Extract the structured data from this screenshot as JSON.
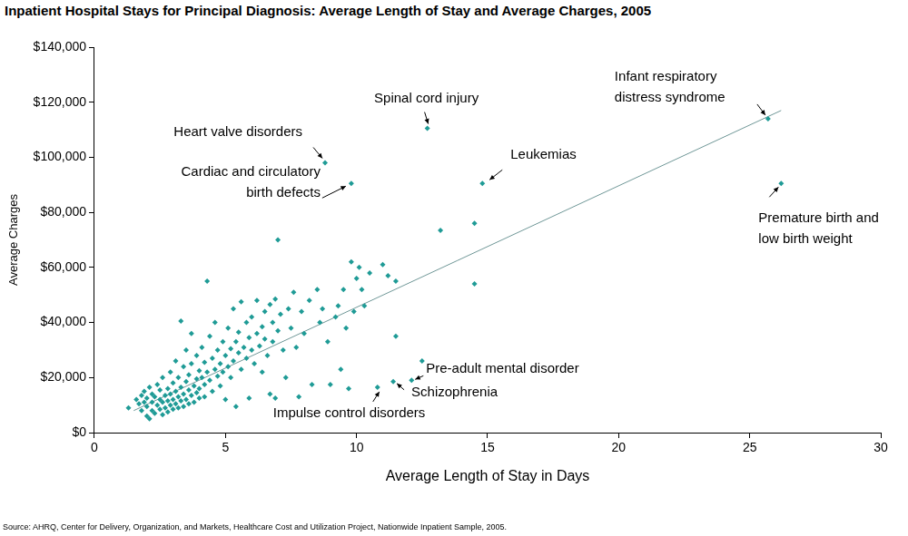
{
  "chart_data": {
    "type": "scatter",
    "title": "Inpatient Hospital Stays for Principal Diagnosis: Average Length of Stay and Average Charges, 2005",
    "source": "Source:  AHRQ, Center for Delivery, Organization, and Markets, Healthcare Cost and Utilization Project, Nationwide Inpatient Sample, 2005.",
    "x_label": "Average Length of Stay in Days",
    "y_label": "Average Charges",
    "xlim": [
      0,
      30
    ],
    "xticks": [
      0,
      5,
      10,
      15,
      20,
      25,
      30
    ],
    "ylim": [
      0,
      140000
    ],
    "yticks": [
      {
        "value": 0,
        "label": "$0"
      },
      {
        "value": 20000,
        "label": "$20,000"
      },
      {
        "value": 40000,
        "label": "$40,000"
      },
      {
        "value": 60000,
        "label": "$60,000"
      },
      {
        "value": 80000,
        "label": "$80,000"
      },
      {
        "value": 100000,
        "label": "$100,000"
      },
      {
        "value": 120000,
        "label": "$120,000"
      },
      {
        "value": 140000,
        "label": "$140,000"
      }
    ],
    "grid": false,
    "series": [
      {
        "type": "scatter",
        "color": "#1f9b96",
        "marker": "diamond",
        "x": [
          1.3,
          1.6,
          1.7,
          1.8,
          1.8,
          1.9,
          1.9,
          2.0,
          2.0,
          2.0,
          2.1,
          2.1,
          2.2,
          2.2,
          2.2,
          2.3,
          2.3,
          2.4,
          2.4,
          2.5,
          2.5,
          2.5,
          2.6,
          2.6,
          2.6,
          2.7,
          2.7,
          2.8,
          2.8,
          2.8,
          2.9,
          2.9,
          2.9,
          3.0,
          3.0,
          3.0,
          3.1,
          3.1,
          3.1,
          3.2,
          3.2,
          3.2,
          3.3,
          3.3,
          3.3,
          3.4,
          3.4,
          3.4,
          3.5,
          3.5,
          3.5,
          3.6,
          3.6,
          3.6,
          3.7,
          3.7,
          3.7,
          3.8,
          3.8,
          3.9,
          3.9,
          3.9,
          4.0,
          4.0,
          4.0,
          4.1,
          4.1,
          4.2,
          4.2,
          4.2,
          4.3,
          4.3,
          4.4,
          4.4,
          4.5,
          4.5,
          4.6,
          4.6,
          4.7,
          4.7,
          4.8,
          4.8,
          4.9,
          4.9,
          5.0,
          5.0,
          5.1,
          5.1,
          5.2,
          5.2,
          5.3,
          5.3,
          5.4,
          5.4,
          5.5,
          5.5,
          5.6,
          5.6,
          5.7,
          5.8,
          5.8,
          5.9,
          5.9,
          6.0,
          6.0,
          6.1,
          6.2,
          6.2,
          6.3,
          6.4,
          6.4,
          6.5,
          6.5,
          6.6,
          6.7,
          6.7,
          6.8,
          6.8,
          6.9,
          6.9,
          7.0,
          7.0,
          7.1,
          7.2,
          7.3,
          7.4,
          7.5,
          7.6,
          7.7,
          7.8,
          7.9,
          8.0,
          8.2,
          8.3,
          8.5,
          8.6,
          8.7,
          8.8,
          8.9,
          9.0,
          9.2,
          9.3,
          9.4,
          9.5,
          9.6,
          9.7,
          9.8,
          9.8,
          9.9,
          10.0,
          10.1,
          10.2,
          10.3,
          10.5,
          10.8,
          11.0,
          11.2,
          11.4,
          11.5,
          11.5,
          12.1,
          12.5,
          12.7,
          13.2,
          14.5,
          14.5,
          14.8,
          25.7,
          26.2
        ],
        "values": [
          9000,
          12000,
          10500,
          13500,
          8000,
          11000,
          15000,
          6000,
          9500,
          12500,
          5000,
          16500,
          8000,
          11000,
          14000,
          7000,
          13000,
          10000,
          17500,
          8500,
          12000,
          15500,
          6500,
          11000,
          20000,
          9000,
          13500,
          11500,
          16000,
          7500,
          10000,
          14000,
          22000,
          8500,
          12000,
          18000,
          10500,
          15000,
          26000,
          9000,
          13000,
          20000,
          11500,
          40500,
          16500,
          14000,
          24000,
          9500,
          12000,
          18500,
          30000,
          15500,
          21000,
          10500,
          13500,
          36000,
          25000,
          17000,
          11000,
          19500,
          14500,
          28000,
          16000,
          22500,
          12500,
          20000,
          31000,
          17500,
          25500,
          13000,
          55000,
          22000,
          19000,
          35000,
          27000,
          15000,
          23000,
          40000,
          20500,
          30000,
          25000,
          17000,
          33000,
          22000,
          28000,
          12000,
          24000,
          38000,
          30500,
          20000,
          45000,
          26000,
          33000,
          9500,
          29000,
          36500,
          23000,
          47500,
          31000,
          27000,
          40000,
          34500,
          12500,
          30000,
          42000,
          25000,
          36000,
          48000,
          31500,
          38500,
          22000,
          44000,
          34000,
          28000,
          46500,
          14000,
          40000,
          33000,
          48500,
          12500,
          70000,
          37000,
          43000,
          30000,
          20000,
          45000,
          38000,
          51000,
          31000,
          13000,
          44000,
          36000,
          48000,
          17500,
          52000,
          40000,
          45000,
          98000,
          33000,
          17500,
          42000,
          46000,
          23000,
          52000,
          38000,
          16000,
          90500,
          62000,
          44000,
          56000,
          60000,
          52000,
          46000,
          58000,
          16500,
          61000,
          57000,
          18500,
          35000,
          55000,
          19000,
          26000,
          110500,
          73500,
          76000,
          54000,
          90500,
          114000,
          90500
        ]
      },
      {
        "type": "line",
        "color": "#6f9797",
        "line_style": "solid",
        "x": [
          1.5,
          26.2
        ],
        "values": [
          8000,
          117000
        ]
      }
    ],
    "annotations": [
      {
        "text": [
          "Heart valve disorders"
        ],
        "x": 8.8,
        "y": 98000
      },
      {
        "text": [
          "Cardiac and circulatory",
          "birth defects"
        ],
        "x": 9.8,
        "y": 90500
      },
      {
        "text": [
          "Spinal cord injury"
        ],
        "x": 12.7,
        "y": 110500
      },
      {
        "text": [
          "Leukemias"
        ],
        "x": 14.8,
        "y": 90500
      },
      {
        "text": [
          "Infant respiratory",
          "distress syndrome"
        ],
        "x": 25.7,
        "y": 114000
      },
      {
        "text": [
          "Premature birth and",
          "low birth weight"
        ],
        "x": 26.2,
        "y": 90500
      },
      {
        "text": [
          "Pre-adult mental disorder"
        ],
        "x": 12.1,
        "y": 19000
      },
      {
        "text": [
          "Schizophrenia"
        ],
        "x": 11.4,
        "y": 18500
      },
      {
        "text": [
          "Impulse control disorders"
        ],
        "x": 10.8,
        "y": 16500
      }
    ],
    "legend": false
  }
}
